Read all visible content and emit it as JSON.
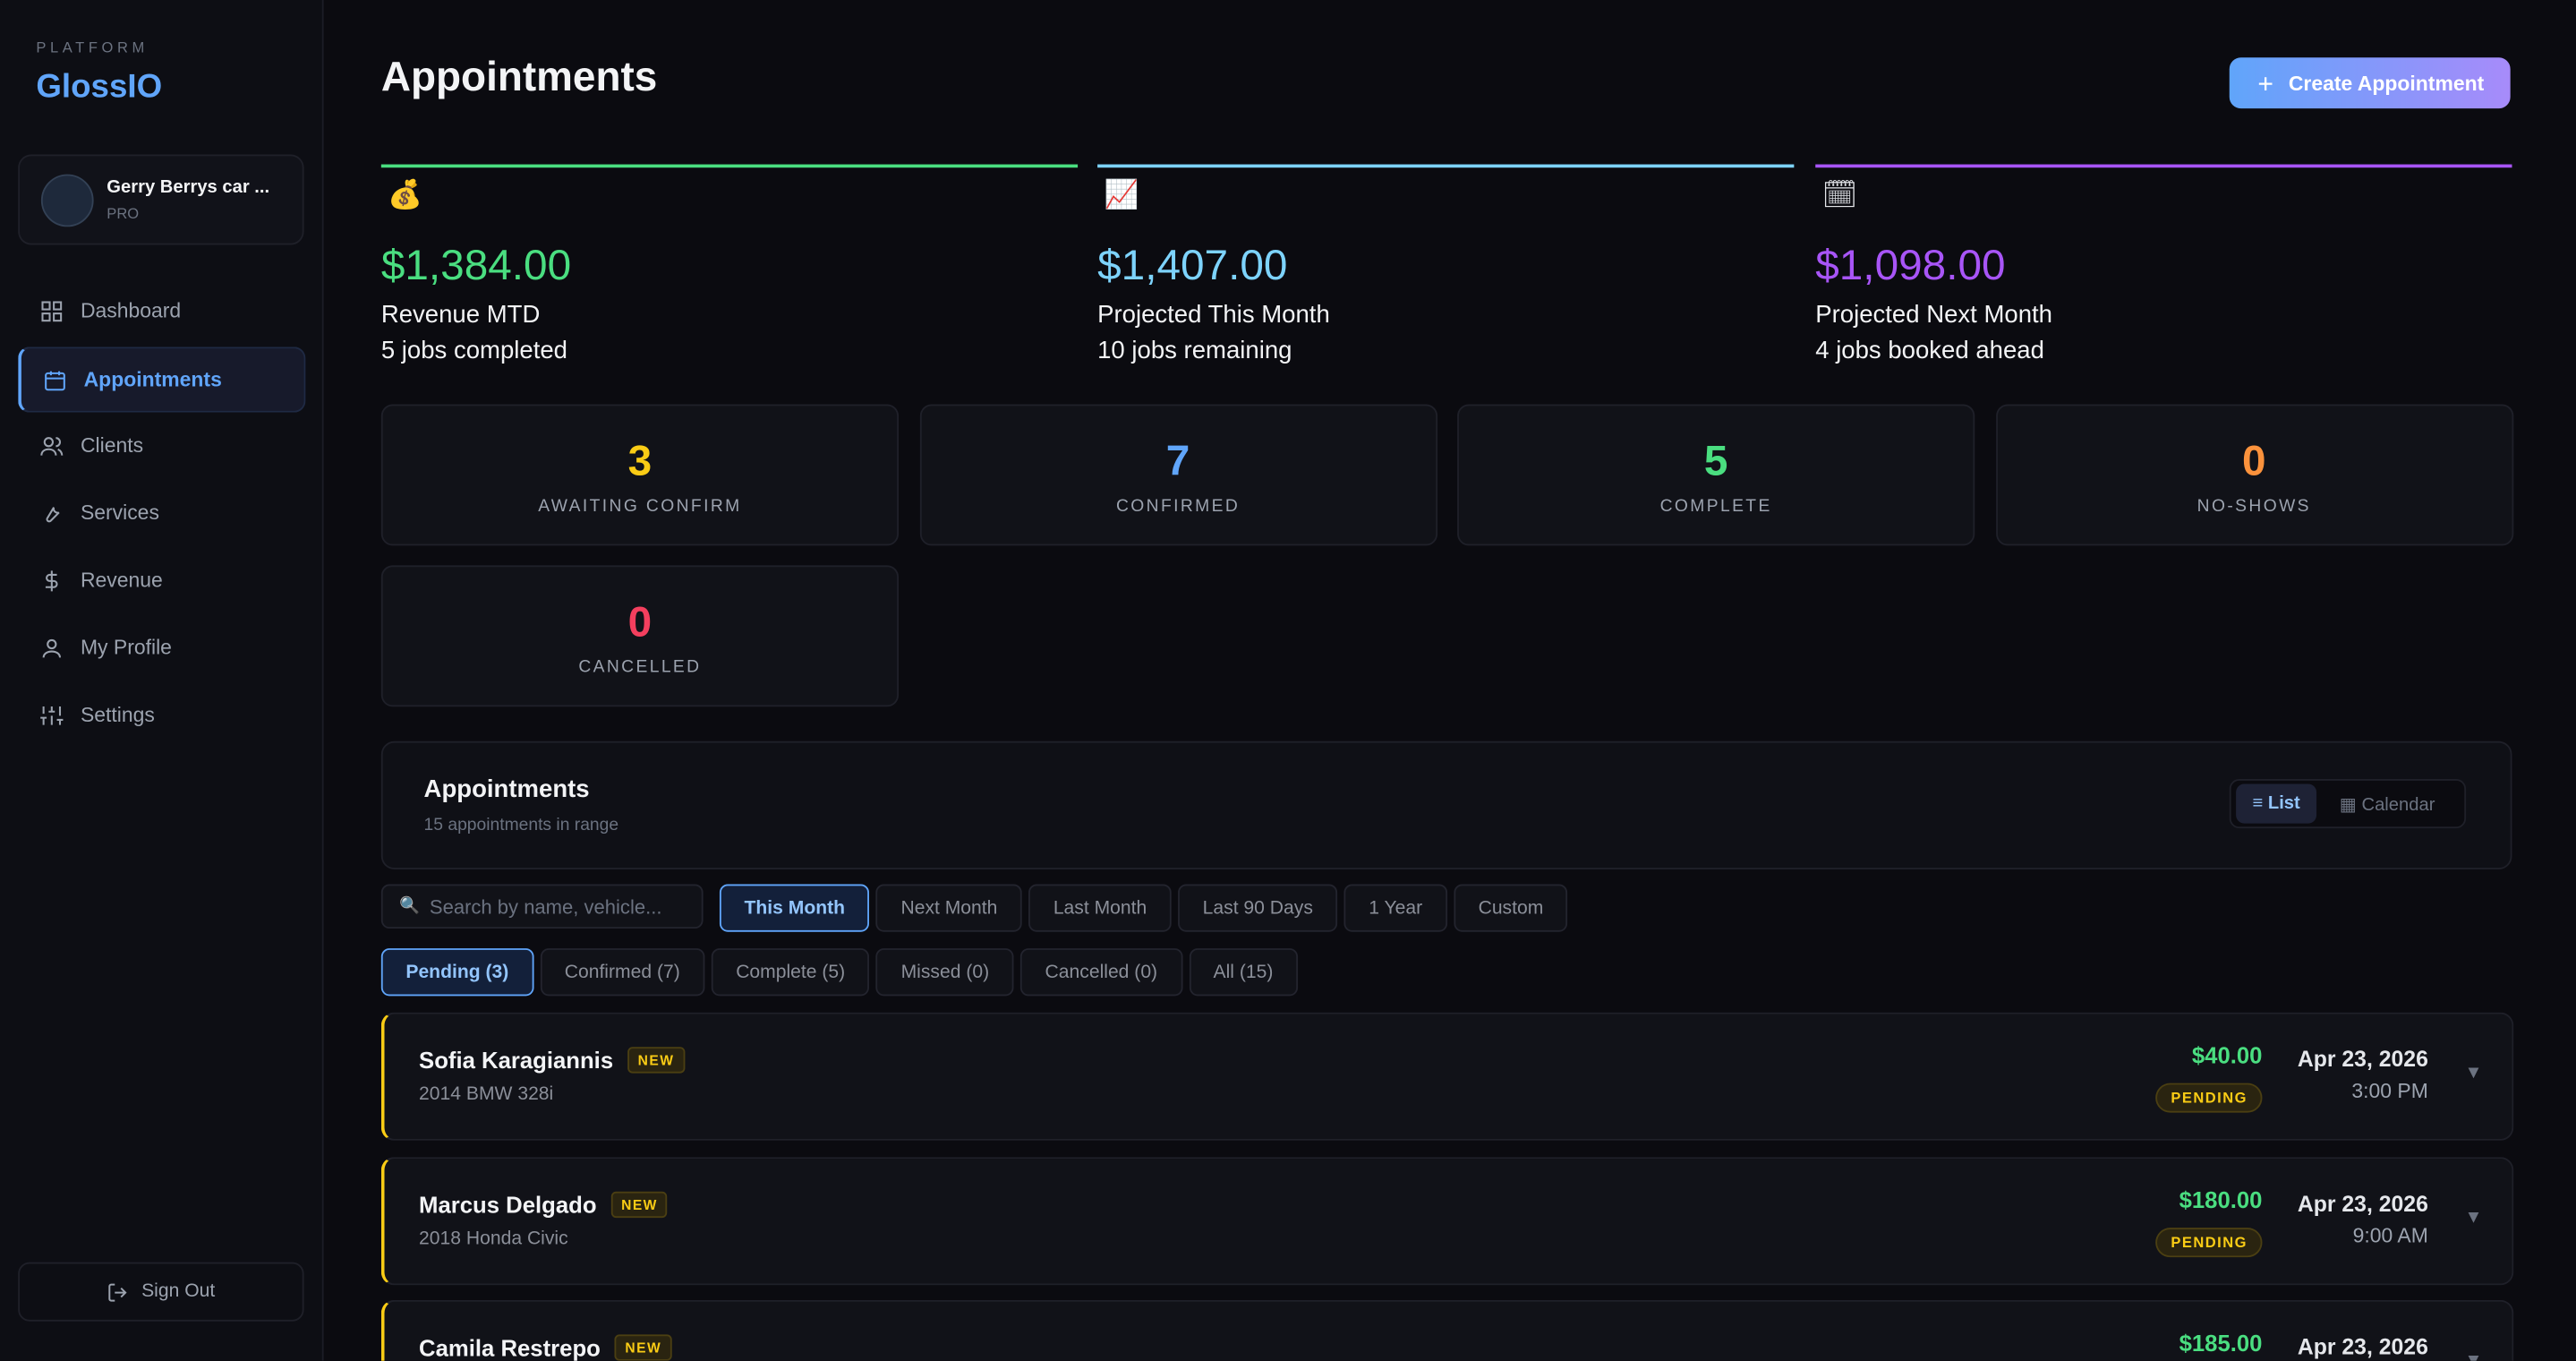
{
  "sidebar": {
    "eyebrow": "PLATFORM",
    "brand": "GlossIO",
    "account": {
      "name": "Gerry Berrys car ...",
      "plan": "PRO"
    },
    "nav": [
      {
        "label": "Dashboard"
      },
      {
        "label": "Appointments"
      },
      {
        "label": "Clients"
      },
      {
        "label": "Services"
      },
      {
        "label": "Revenue"
      },
      {
        "label": "My Profile"
      },
      {
        "label": "Settings"
      }
    ],
    "sign_out": "Sign Out"
  },
  "header": {
    "title": "Appointments",
    "action": "Create Appointment"
  },
  "summary": [
    {
      "icon": "💰",
      "amount": "$1,384.00",
      "label": "Revenue MTD",
      "detail": "5 jobs completed"
    },
    {
      "icon": "📈",
      "amount": "$1,407.00",
      "label": "Projected This Month",
      "detail": "10 jobs remaining"
    },
    {
      "icon": "🗓",
      "amount": "$1,098.00",
      "label": "Projected Next Month",
      "detail": "4 jobs booked ahead"
    }
  ],
  "status_counts": [
    {
      "count": 3,
      "label": "AWAITING CONFIRM"
    },
    {
      "count": 7,
      "label": "CONFIRMED"
    },
    {
      "count": 5,
      "label": "COMPLETE"
    },
    {
      "count": 0,
      "label": "NO-SHOWS"
    },
    {
      "count": 0,
      "label": "CANCELLED"
    }
  ],
  "list": {
    "title": "Appointments",
    "subtitle": "15 appointments in range",
    "views": [
      "≡ List",
      "▦ Calendar"
    ],
    "search_placeholder": "Search by name, vehicle...",
    "ranges": [
      "This Month",
      "Next Month",
      "Last Month",
      "Last 90 Days",
      "1 Year",
      "Custom"
    ],
    "statuses": [
      "Pending (3)",
      "Confirmed (7)",
      "Complete (5)",
      "Missed (0)",
      "Cancelled (0)",
      "All (15)"
    ],
    "appointments": [
      {
        "name": "Sofia Karagiannis",
        "badge": "NEW",
        "vehicle": "2014 BMW 328i",
        "price": "$40.00",
        "status": "PENDING",
        "date": "Apr 23, 2026",
        "time": "3:00 PM"
      },
      {
        "name": "Marcus Delgado",
        "badge": "NEW",
        "vehicle": "2018 Honda Civic",
        "price": "$180.00",
        "status": "PENDING",
        "date": "Apr 23, 2026",
        "time": "9:00 AM"
      },
      {
        "name": "Camila Restrepo",
        "badge": "NEW",
        "price": "$185.00",
        "date": "Apr 23, 2026"
      }
    ]
  }
}
